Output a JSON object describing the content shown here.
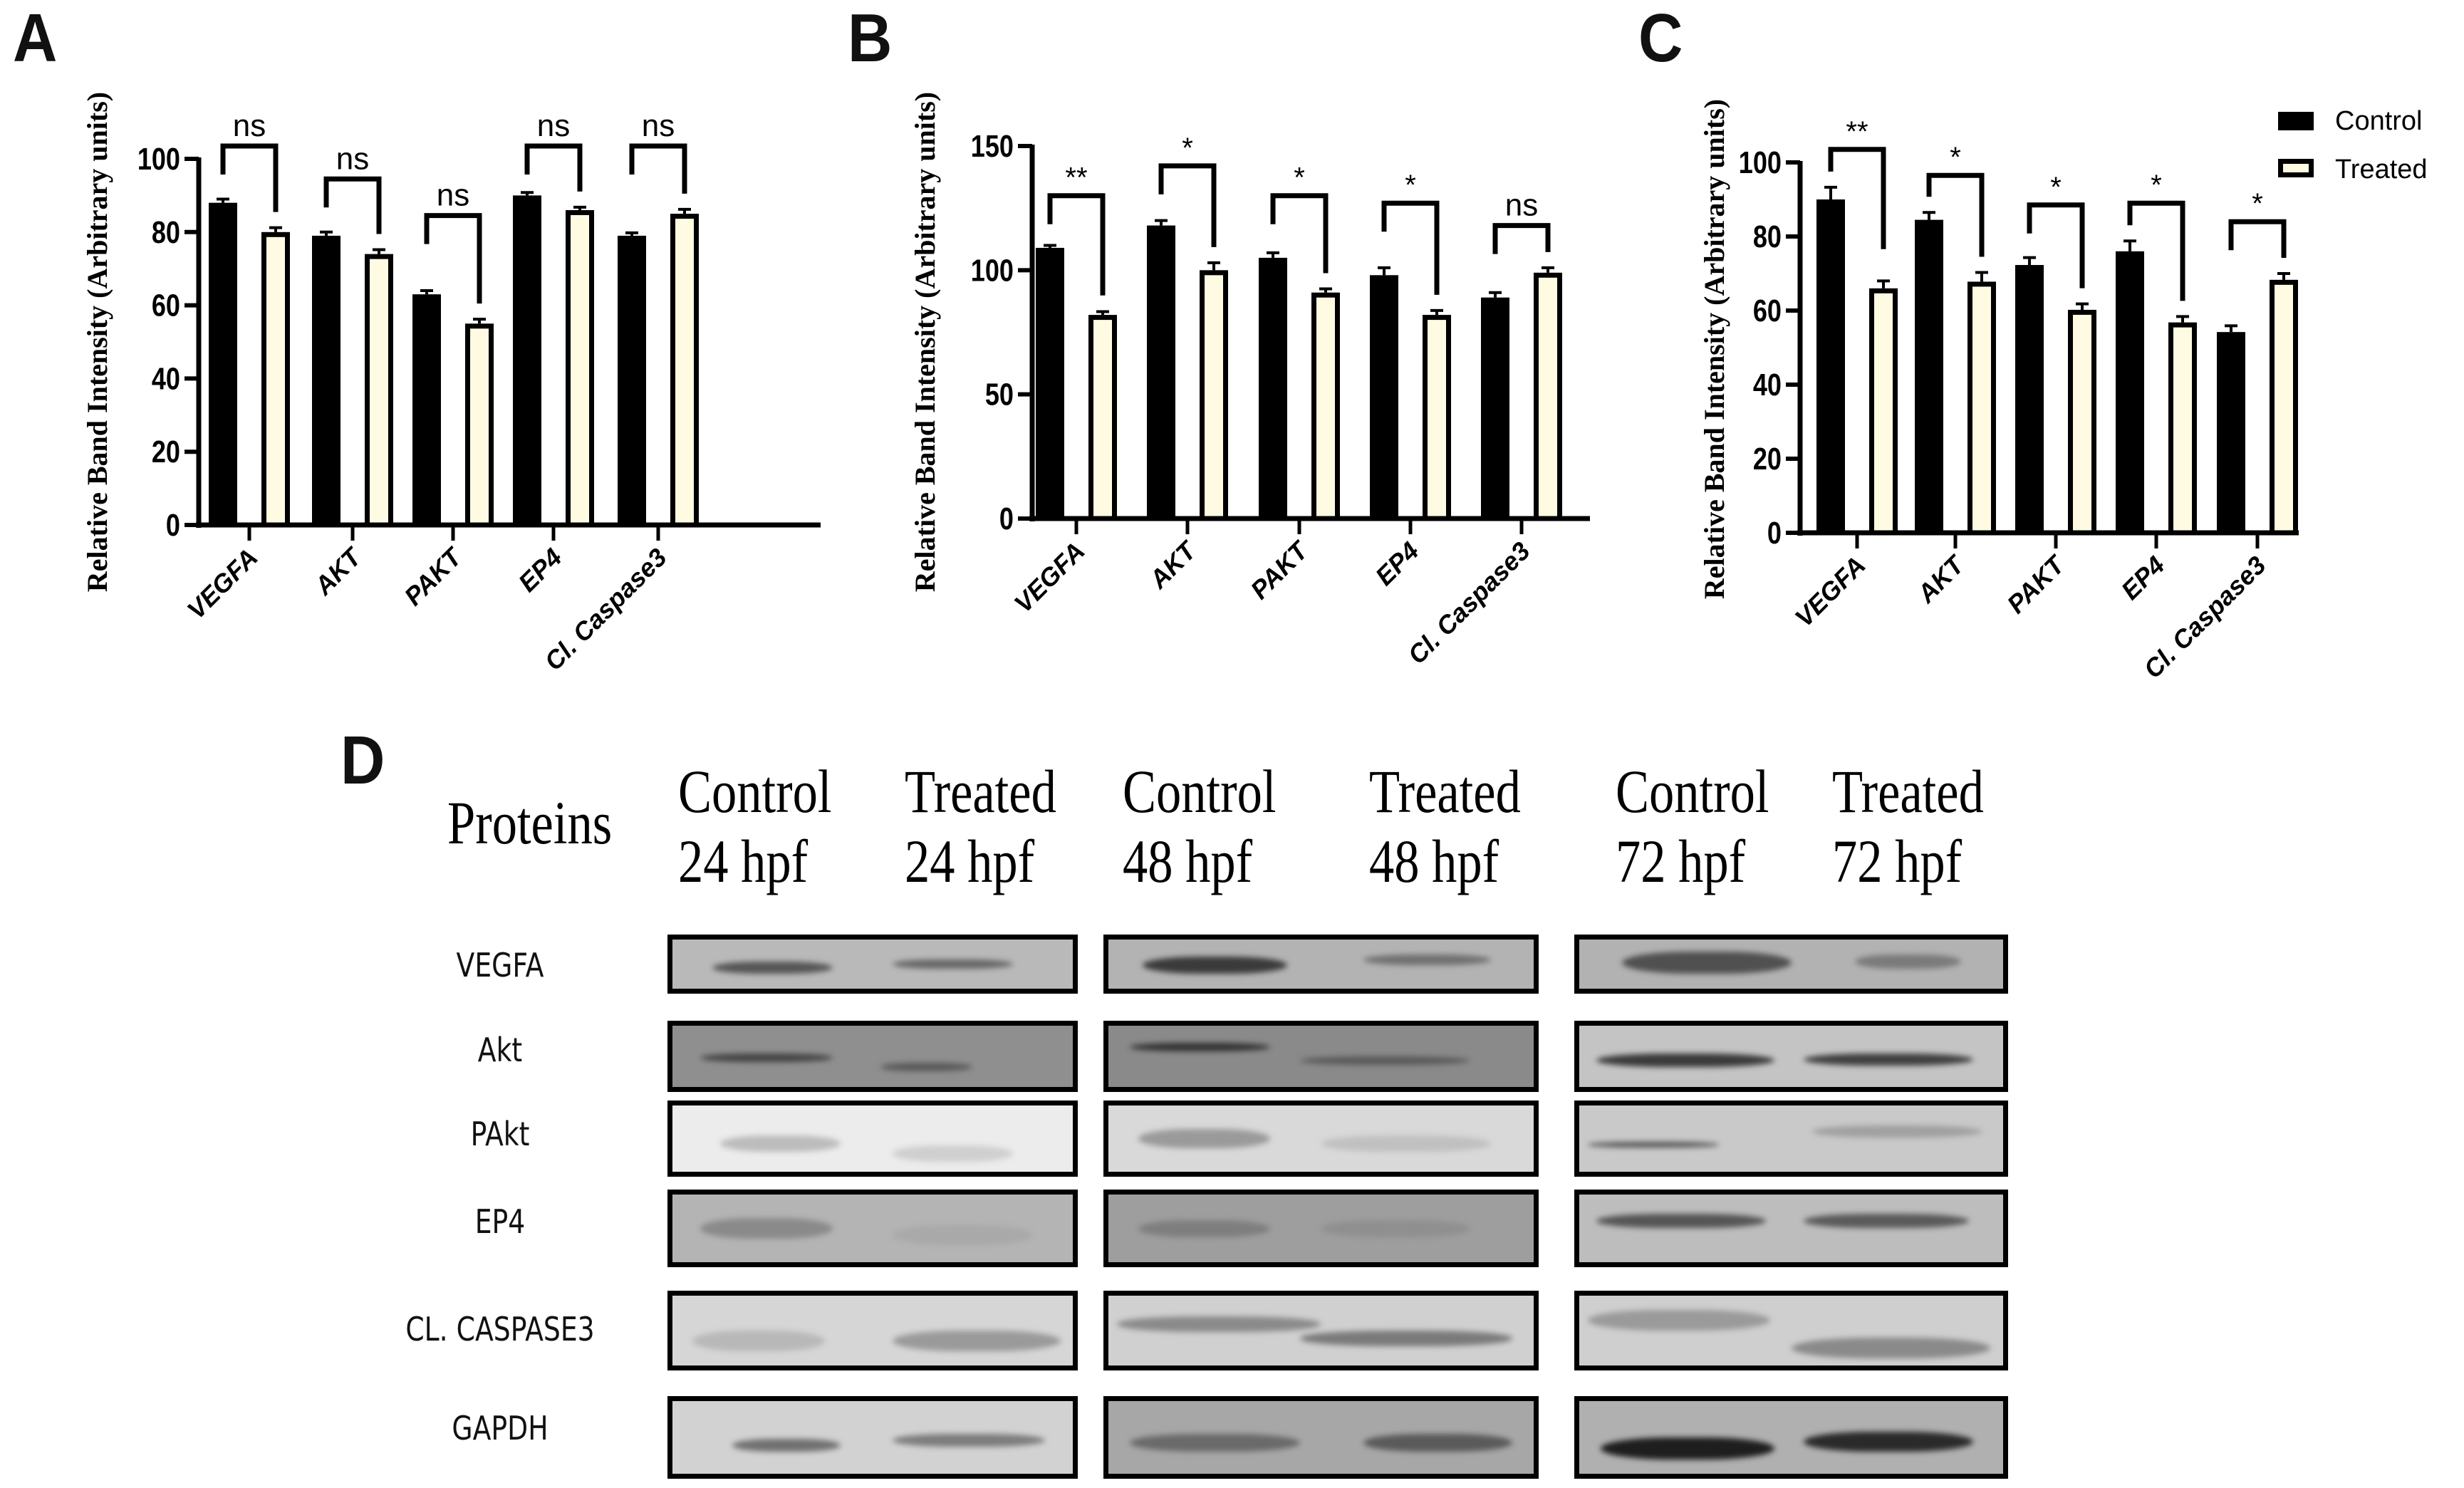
{
  "figure": {
    "panel_labels": [
      "A",
      "B",
      "C",
      "D"
    ]
  },
  "colors": {
    "control": "#000000",
    "treated": "#fffbe3",
    "axis": "#000000"
  },
  "chart_data": [
    {
      "panel": "A",
      "type": "bar",
      "title": "",
      "xlabel": "",
      "ylabel": "Relative Band Intensity (Arbitrary units)",
      "ylim": [
        0,
        100
      ],
      "yticks": [
        0,
        20,
        40,
        60,
        80,
        100
      ],
      "ytick_labels": [
        "0",
        "20",
        "40",
        "60",
        "80",
        "100"
      ],
      "categories": [
        "VEGFA",
        "AKT",
        "PAKT",
        "EP4",
        "Cl. Caspase3"
      ],
      "series": [
        {
          "name": "Control",
          "values": [
            88,
            79,
            63,
            90,
            79
          ],
          "errors": [
            1,
            1,
            1,
            0.8,
            0.8
          ]
        },
        {
          "name": "Treated",
          "values": [
            80,
            74,
            55,
            86,
            85
          ],
          "errors": [
            1.2,
            1.2,
            1.2,
            0.8,
            1.2
          ]
        }
      ],
      "significance": [
        {
          "label": "ns",
          "bracket_y": 103.5
        },
        {
          "label": "ns",
          "bracket_y": 94.5
        },
        {
          "label": "ns",
          "bracket_y": 84.5
        },
        {
          "label": "ns",
          "bracket_y": 103.5
        },
        {
          "label": "ns",
          "bracket_y": 103.5
        }
      ],
      "legend": null
    },
    {
      "panel": "B",
      "type": "bar",
      "title": "",
      "xlabel": "",
      "ylabel": "Relative Band Intensity (Arbitrary units)",
      "ylim": [
        0,
        150
      ],
      "yticks": [
        0,
        50,
        100,
        150
      ],
      "ytick_labels": [
        "0",
        "50",
        "100",
        "150"
      ],
      "categories": [
        "VEGFA",
        "AKT",
        "PAKT",
        "EP4",
        "Cl. Caspase3"
      ],
      "series": [
        {
          "name": "Control",
          "values": [
            109,
            118,
            105,
            98,
            89
          ],
          "errors": [
            1,
            2,
            2,
            3,
            2
          ]
        },
        {
          "name": "Treated",
          "values": [
            82,
            100,
            91,
            82,
            99
          ],
          "errors": [
            1.3,
            3,
            1.5,
            1.8,
            2
          ]
        }
      ],
      "significance": [
        {
          "label": "**",
          "bracket_y": 130
        },
        {
          "label": "*",
          "bracket_y": 142
        },
        {
          "label": "*",
          "bracket_y": 130
        },
        {
          "label": "*",
          "bracket_y": 127
        },
        {
          "label": "ns",
          "bracket_y": 118
        }
      ],
      "legend": null
    },
    {
      "panel": "C",
      "type": "bar",
      "title": "",
      "xlabel": "",
      "ylabel": "Relative Band Intensity (Arbitrary units)",
      "ylim": [
        0,
        100
      ],
      "yticks": [
        0,
        20,
        40,
        60,
        80,
        100
      ],
      "ytick_labels": [
        "0",
        "20",
        "40",
        "60",
        "80",
        "100"
      ],
      "categories": [
        "VEGFA",
        "AKT",
        "PAKT",
        "EP4",
        "Cl. Caspase3"
      ],
      "series": [
        {
          "name": "Control",
          "values": [
            90,
            84.5,
            72.3,
            76,
            54.2
          ],
          "errors": [
            3.3,
            2,
            2,
            2.8,
            1.7
          ]
        },
        {
          "name": "Treated",
          "values": [
            66,
            67.8,
            60.2,
            56.8,
            68.3
          ],
          "errors": [
            2,
            2.5,
            1.6,
            1.6,
            1.7
          ]
        }
      ],
      "significance": [
        {
          "label": "**",
          "bracket_y": 103.5
        },
        {
          "label": "*",
          "bracket_y": 96.5
        },
        {
          "label": "*",
          "bracket_y": 88.5
        },
        {
          "label": "*",
          "bracket_y": 89
        },
        {
          "label": "*",
          "bracket_y": 84
        }
      ],
      "legend": {
        "placement": "top-right",
        "entries": [
          "Control",
          "Treated"
        ]
      }
    }
  ],
  "blots": {
    "proteins_header": "Proteins",
    "columns": [
      {
        "line1": "Control",
        "line2": "24 hpf"
      },
      {
        "line1": "Treated",
        "line2": "24 hpf"
      },
      {
        "line1": "Control",
        "line2": "48 hpf"
      },
      {
        "line1": "Treated",
        "line2": "48 hpf"
      },
      {
        "line1": "Control",
        "line2": "72 hpf"
      },
      {
        "line1": "Treated",
        "line2": "72 hpf"
      }
    ],
    "rows": [
      {
        "label": "VEGFA"
      },
      {
        "label": "Akt"
      },
      {
        "label": "PAkt"
      },
      {
        "label": "EP4"
      },
      {
        "label": "CL. CASPASE3"
      },
      {
        "label": "GAPDH"
      }
    ],
    "timepoints": [
      "24 hpf",
      "48 hpf",
      "72 hpf"
    ]
  }
}
